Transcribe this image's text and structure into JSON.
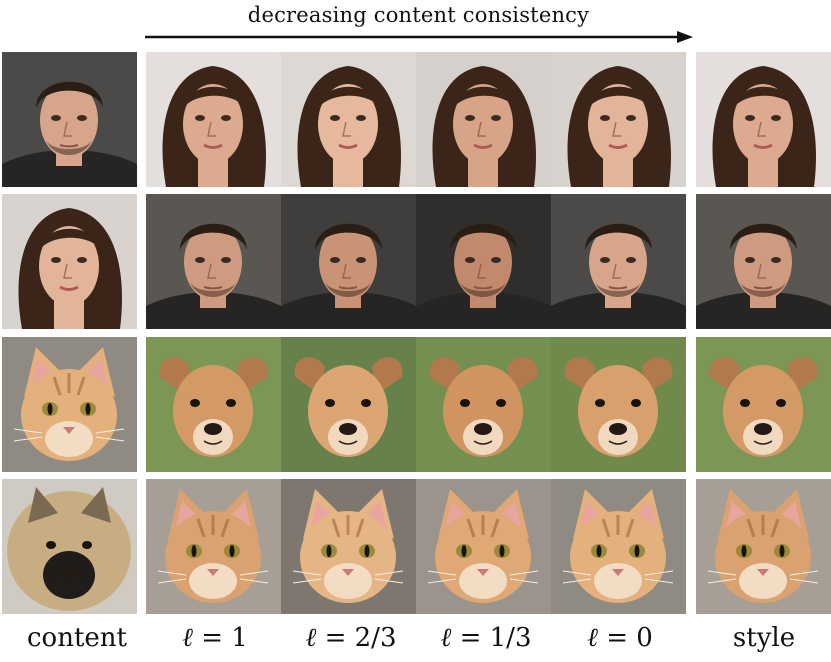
{
  "header": {
    "label": "decreasing content consistency"
  },
  "columns": [
    {
      "label": "content"
    },
    {
      "symbol": "ℓ",
      "label": " = 1"
    },
    {
      "symbol": "ℓ",
      "label": " = 2/3"
    },
    {
      "symbol": "ℓ",
      "label": " = 1/3"
    },
    {
      "symbol": "ℓ",
      "label": " = 0"
    },
    {
      "label": "style"
    }
  ],
  "rows": [
    {
      "content": "man-face",
      "style": "woman-face",
      "result": "woman-face"
    },
    {
      "content": "woman-face",
      "style": "man-face",
      "result": "man-face"
    },
    {
      "content": "cat-face",
      "style": "dog-face",
      "result": "dog-face"
    },
    {
      "content": "dog-face",
      "style": "cat-face",
      "result": "cat-face"
    }
  ],
  "colors": {
    "arrow": "#111111",
    "text": "#111111"
  }
}
